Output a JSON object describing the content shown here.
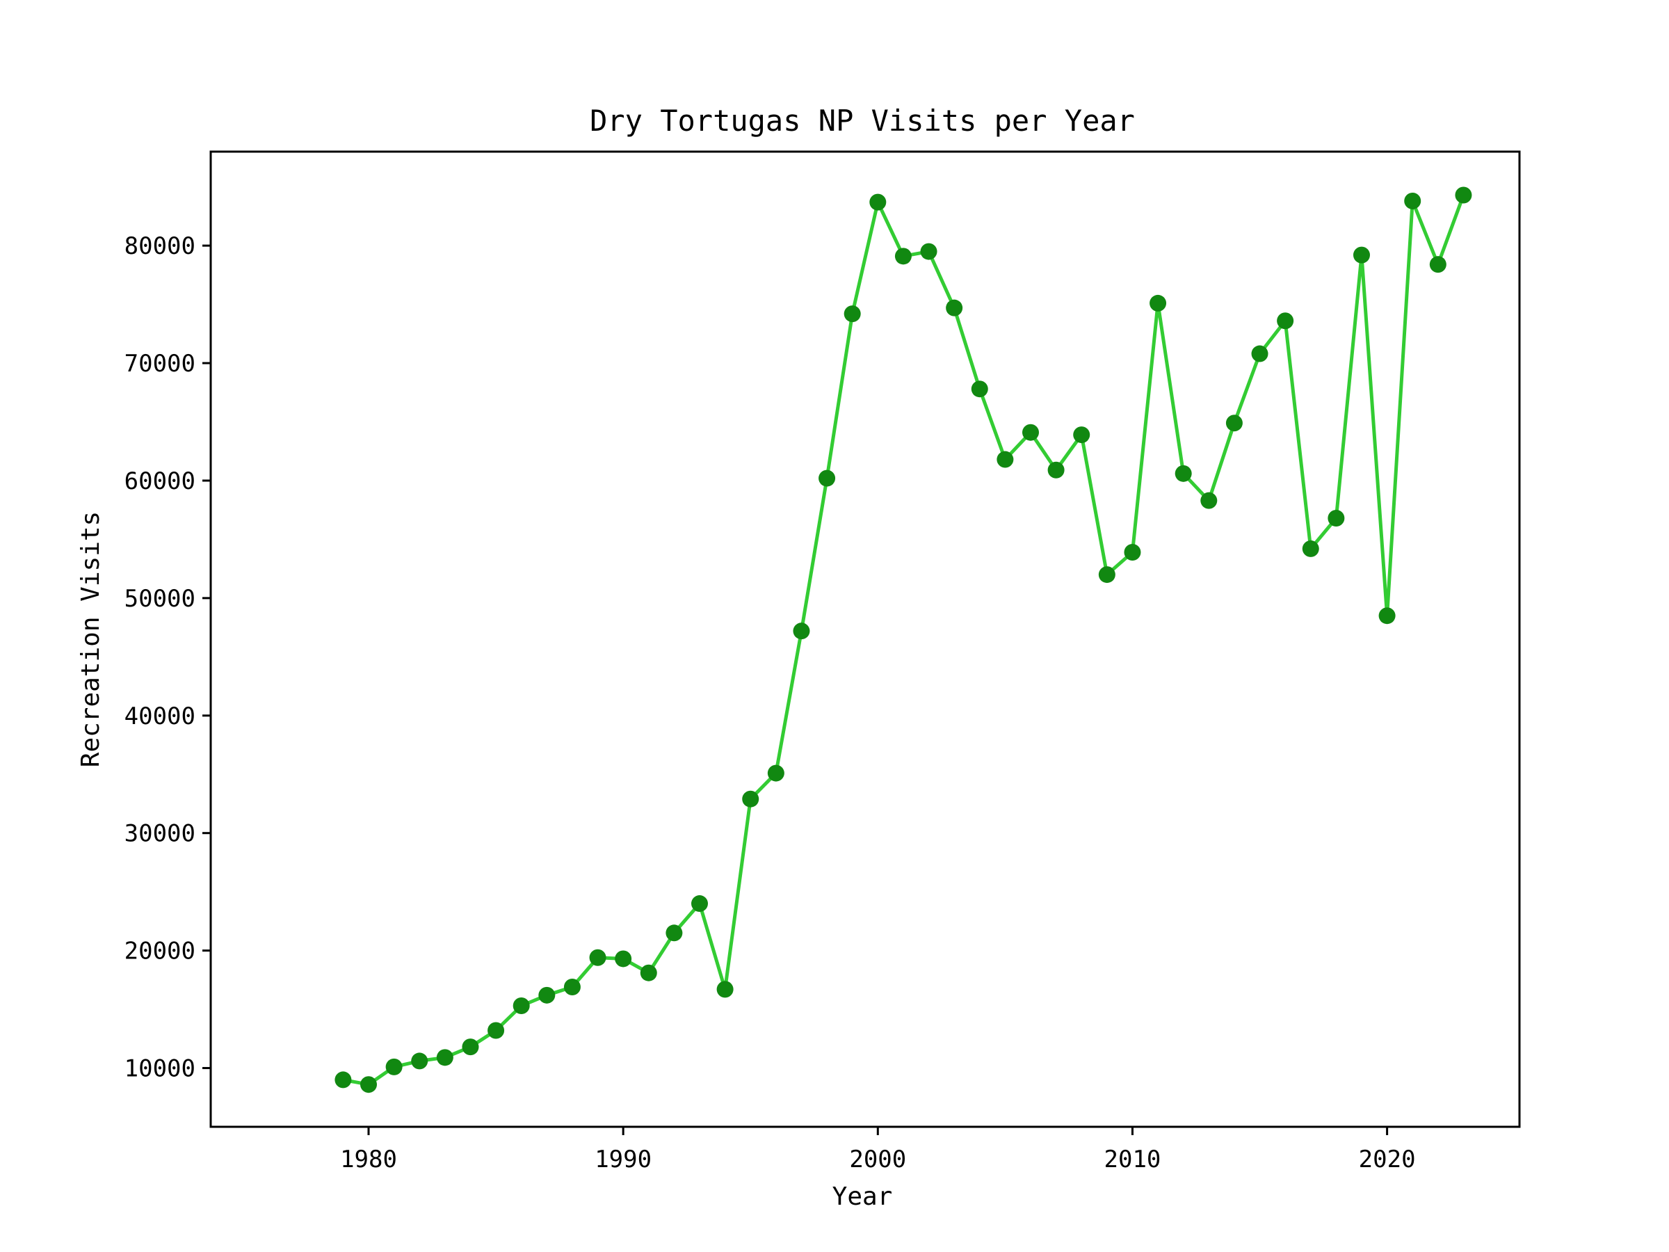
{
  "chart_data": {
    "type": "line",
    "title": "Dry Tortugas NP Visits per Year",
    "xlabel": "Year",
    "ylabel": "Recreation Visits",
    "xlim": [
      1973.8,
      2025.2
    ],
    "ylim": [
      5000,
      88000
    ],
    "xticks": [
      1980,
      1990,
      2000,
      2010,
      2020
    ],
    "yticks": [
      10000,
      20000,
      30000,
      40000,
      50000,
      60000,
      70000,
      80000
    ],
    "grid": false,
    "legend": "none",
    "line_color": "#33cc33",
    "marker_color": "#118811",
    "series": [
      {
        "x": [
          1979,
          1980,
          1981,
          1982,
          1983,
          1984,
          1985,
          1986,
          1987,
          1988,
          1989,
          1990,
          1991,
          1992,
          1993,
          1994,
          1995,
          1996,
          1997,
          1998,
          1999,
          2000,
          2001,
          2002,
          2003,
          2004,
          2005,
          2006,
          2007,
          2008,
          2009,
          2010,
          2011,
          2012,
          2013,
          2014,
          2015,
          2016,
          2017,
          2018,
          2019,
          2020,
          2021,
          2022,
          2023
        ],
        "values": [
          9000,
          8600,
          10100,
          10600,
          10900,
          11800,
          13200,
          15300,
          16200,
          16900,
          19400,
          19300,
          18100,
          21500,
          24000,
          16700,
          32900,
          35100,
          47200,
          60200,
          74200,
          83700,
          79100,
          79500,
          74700,
          67800,
          61800,
          64100,
          60900,
          63900,
          52000,
          53900,
          75100,
          60600,
          58300,
          64900,
          70800,
          73600,
          54200,
          56800,
          79200,
          48500,
          83800,
          78400,
          84300
        ]
      }
    ]
  }
}
